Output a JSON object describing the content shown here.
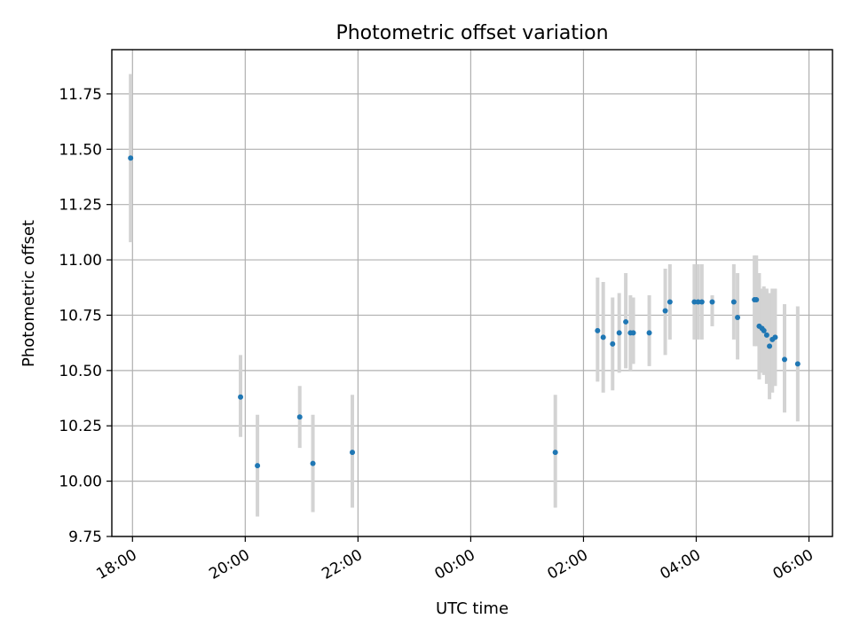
{
  "colors": {
    "marker": "#1f77b4",
    "errorbar": "#d3d3d3",
    "grid": "#b0b0b0",
    "axes": "#000000"
  },
  "chart_data": {
    "type": "scatter",
    "title": "Photometric offset variation",
    "xlabel": "UTC time",
    "ylabel": "Photometric offset",
    "grid": true,
    "x_unit": "UTC time of night (first sample ~17:58)",
    "xlim": [
      "17:38",
      "06:25"
    ],
    "ylim": [
      9.75,
      11.95
    ],
    "x_ticks": [
      "18:00",
      "20:00",
      "22:00",
      "00:00",
      "02:00",
      "04:00",
      "06:00"
    ],
    "y_ticks": [
      "9.75",
      "10.00",
      "10.25",
      "10.50",
      "10.75",
      "11.00",
      "11.25",
      "11.50",
      "11.75"
    ],
    "series": [
      {
        "name": "",
        "points": [
          {
            "x": "17:58",
            "y": 11.46,
            "lo": 11.08,
            "hi": 11.84
          },
          {
            "x": "19:55",
            "y": 10.38,
            "lo": 10.2,
            "hi": 10.57
          },
          {
            "x": "20:13",
            "y": 10.07,
            "lo": 9.84,
            "hi": 10.3
          },
          {
            "x": "20:58",
            "y": 10.29,
            "lo": 10.15,
            "hi": 10.43
          },
          {
            "x": "21:12",
            "y": 10.08,
            "lo": 9.86,
            "hi": 10.3
          },
          {
            "x": "21:54",
            "y": 10.13,
            "lo": 9.88,
            "hi": 10.39
          },
          {
            "x": "01:30",
            "y": 10.13,
            "lo": 9.88,
            "hi": 10.39
          },
          {
            "x": "02:15",
            "y": 10.68,
            "lo": 10.45,
            "hi": 10.92
          },
          {
            "x": "02:21",
            "y": 10.65,
            "lo": 10.4,
            "hi": 10.9
          },
          {
            "x": "02:31",
            "y": 10.62,
            "lo": 10.41,
            "hi": 10.83
          },
          {
            "x": "02:38",
            "y": 10.67,
            "lo": 10.49,
            "hi": 10.85
          },
          {
            "x": "02:45",
            "y": 10.72,
            "lo": 10.51,
            "hi": 10.94
          },
          {
            "x": "02:50",
            "y": 10.67,
            "lo": 10.5,
            "hi": 10.84
          },
          {
            "x": "02:53",
            "y": 10.67,
            "lo": 10.53,
            "hi": 10.83
          },
          {
            "x": "03:10",
            "y": 10.67,
            "lo": 10.52,
            "hi": 10.84
          },
          {
            "x": "03:27",
            "y": 10.77,
            "lo": 10.57,
            "hi": 10.96
          },
          {
            "x": "03:32",
            "y": 10.81,
            "lo": 10.64,
            "hi": 10.98
          },
          {
            "x": "03:58",
            "y": 10.81,
            "lo": 10.64,
            "hi": 10.98
          },
          {
            "x": "04:02",
            "y": 10.81,
            "lo": 10.64,
            "hi": 10.98
          },
          {
            "x": "04:06",
            "y": 10.81,
            "lo": 10.64,
            "hi": 10.98
          },
          {
            "x": "04:17",
            "y": 10.81,
            "lo": 10.7,
            "hi": 10.84
          },
          {
            "x": "04:40",
            "y": 10.81,
            "lo": 10.64,
            "hi": 10.98
          },
          {
            "x": "04:44",
            "y": 10.74,
            "lo": 10.55,
            "hi": 10.94
          },
          {
            "x": "05:02",
            "y": 10.82,
            "lo": 10.61,
            "hi": 11.02
          },
          {
            "x": "05:04",
            "y": 10.82,
            "lo": 10.61,
            "hi": 11.02
          },
          {
            "x": "05:07",
            "y": 10.7,
            "lo": 10.46,
            "hi": 10.94
          },
          {
            "x": "05:10",
            "y": 10.69,
            "lo": 10.49,
            "hi": 10.87
          },
          {
            "x": "05:12",
            "y": 10.68,
            "lo": 10.48,
            "hi": 10.88
          },
          {
            "x": "05:15",
            "y": 10.66,
            "lo": 10.44,
            "hi": 10.87
          },
          {
            "x": "05:18",
            "y": 10.61,
            "lo": 10.37,
            "hi": 10.85
          },
          {
            "x": "05:21",
            "y": 10.64,
            "lo": 10.4,
            "hi": 10.87
          },
          {
            "x": "05:24",
            "y": 10.65,
            "lo": 10.43,
            "hi": 10.87
          },
          {
            "x": "05:34",
            "y": 10.55,
            "lo": 10.31,
            "hi": 10.8
          },
          {
            "x": "05:48",
            "y": 10.53,
            "lo": 10.27,
            "hi": 10.79
          }
        ]
      }
    ]
  }
}
